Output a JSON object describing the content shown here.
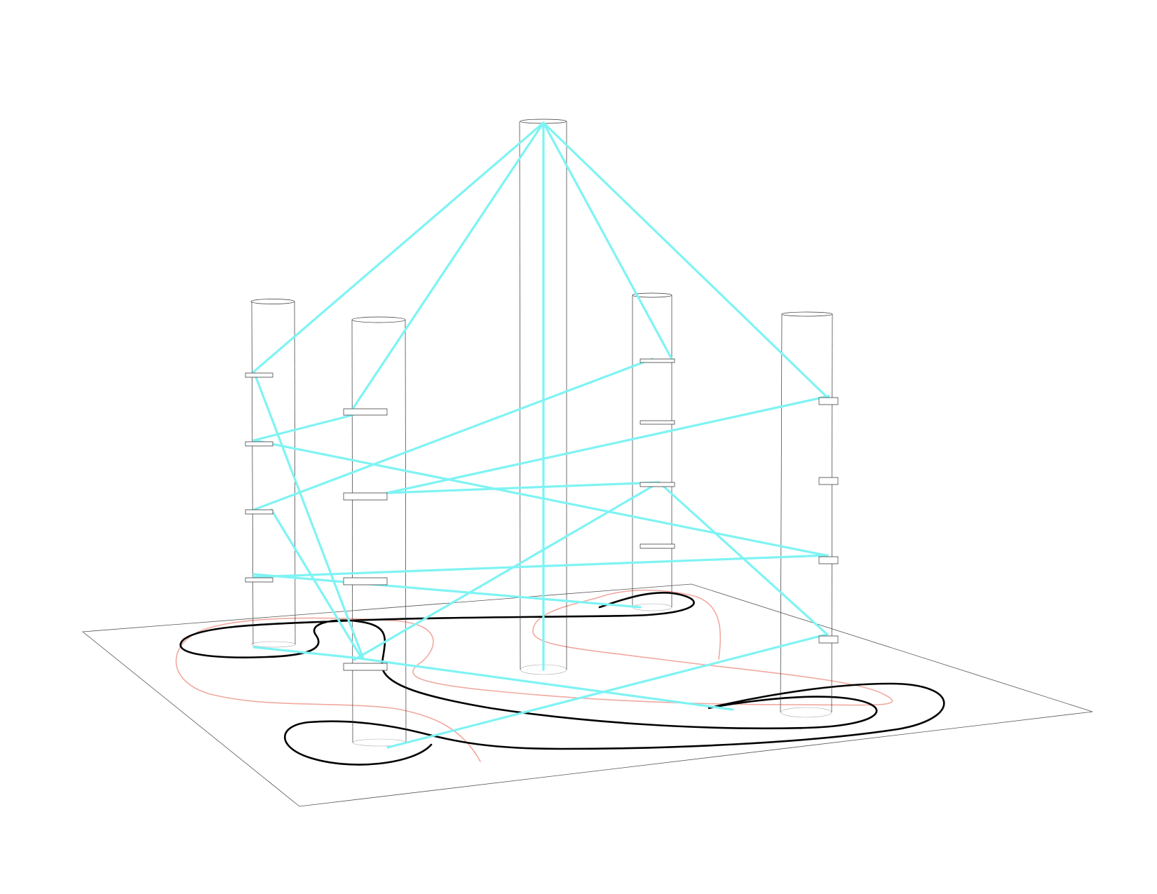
{
  "figure": {
    "background_color": "#ffffff",
    "beam_color": "#7ff3f3",
    "primary_path_color": "#000000",
    "secondary_path_color": "#f0a9a0",
    "structure_color": "#333333"
  },
  "components": {
    "ground_plane": "ground-plane",
    "towers": [
      "tower-1",
      "tower-2",
      "tower-center",
      "tower-3",
      "tower-4"
    ],
    "paths": [
      "black-path",
      "pink-path"
    ]
  }
}
